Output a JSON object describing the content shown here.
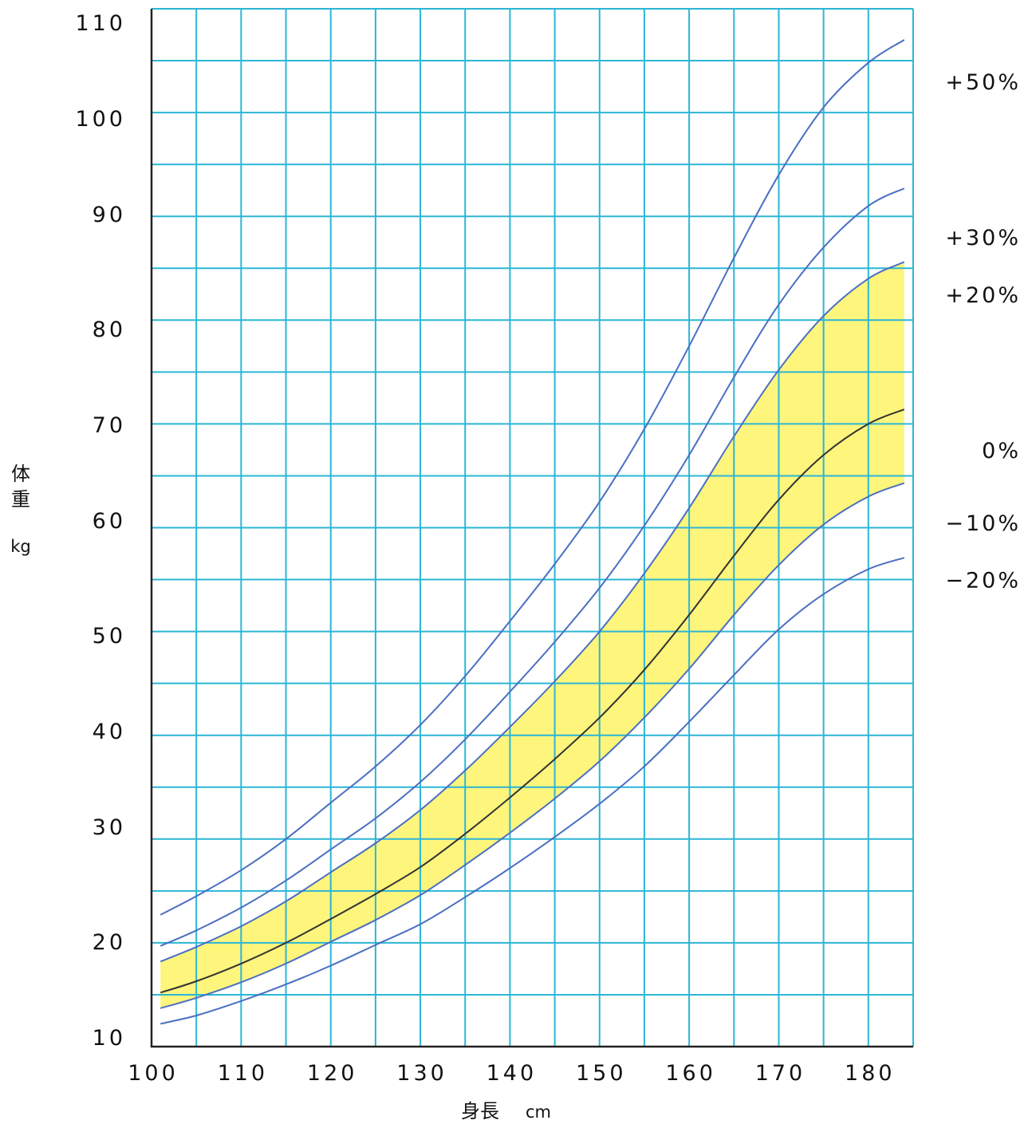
{
  "chart_data": {
    "type": "line",
    "title": "",
    "xlabel": "身長",
    "xunit": "cm",
    "ylabel": [
      "体",
      "重"
    ],
    "yunit": "kg",
    "xlim": [
      100,
      185
    ],
    "ylim": [
      10,
      110
    ],
    "x_ticks": [
      100,
      110,
      120,
      130,
      140,
      150,
      160,
      170,
      180
    ],
    "x_tick_labels": [
      "100",
      "110",
      "120",
      "130",
      "140",
      "150",
      "160",
      "170",
      "180"
    ],
    "y_ticks": [
      10,
      20,
      30,
      40,
      50,
      60,
      70,
      80,
      90,
      100,
      110
    ],
    "y_tick_labels": [
      "10",
      "20",
      "30",
      "40",
      "50",
      "60",
      "70",
      "80",
      "90",
      "100",
      "110"
    ],
    "grid": true,
    "x_grid_step": 5,
    "y_grid_step": 5,
    "band": {
      "from_series": "−10%",
      "to_series": "+20%",
      "color": "#fdf57c"
    },
    "x": [
      101,
      105,
      110,
      115,
      120,
      125,
      130,
      135,
      140,
      145,
      150,
      155,
      160,
      165,
      170,
      175,
      180,
      184
    ],
    "series": [
      {
        "name": "+50%",
        "label_value": 103,
        "color": "#4a6fc2",
        "values": [
          22.7,
          24.5,
          27.0,
          30.0,
          33.5,
          37.0,
          41.0,
          45.7,
          51.0,
          56.5,
          62.5,
          69.5,
          77.5,
          86.0,
          94.0,
          100.5,
          104.8,
          107.0
        ]
      },
      {
        "name": "+30%",
        "label_value": 88,
        "color": "#4a6fc2",
        "values": [
          19.7,
          21.2,
          23.4,
          26.0,
          29.0,
          32.0,
          35.5,
          39.6,
          44.2,
          49.0,
          54.2,
          60.2,
          67.0,
          74.5,
          81.5,
          87.0,
          91.0,
          92.7
        ]
      },
      {
        "name": "+20%",
        "label_value": 82.5,
        "color": "#4a6fc2",
        "values": [
          18.2,
          19.6,
          21.6,
          24.0,
          26.8,
          29.6,
          32.8,
          36.6,
          40.8,
          45.2,
          50.0,
          55.6,
          61.9,
          68.8,
          75.2,
          80.4,
          84.0,
          85.6
        ]
      },
      {
        "name": "0%",
        "label_value": 67.5,
        "color": "#333333",
        "values": [
          15.2,
          16.3,
          18.0,
          20.0,
          22.3,
          24.7,
          27.3,
          30.5,
          34.0,
          37.7,
          41.7,
          46.3,
          51.6,
          57.3,
          62.7,
          67.0,
          70.0,
          71.4
        ]
      },
      {
        "name": "−10%",
        "label_value": 60.5,
        "color": "#4a6fc2",
        "values": [
          13.7,
          14.7,
          16.2,
          18.0,
          20.1,
          22.2,
          24.6,
          27.5,
          30.6,
          33.9,
          37.5,
          41.7,
          46.4,
          51.6,
          56.4,
          60.3,
          63.0,
          64.3
        ]
      },
      {
        "name": "−20%",
        "label_value": 55,
        "color": "#4a6fc2",
        "values": [
          12.2,
          13.0,
          14.4,
          16.0,
          17.8,
          19.8,
          21.8,
          24.4,
          27.2,
          30.2,
          33.4,
          37.0,
          41.3,
          45.8,
          50.2,
          53.6,
          56.0,
          57.1
        ]
      }
    ]
  },
  "colors": {
    "grid": "#2bb6d6",
    "axis": "#222222",
    "band": "#fdf57c"
  }
}
